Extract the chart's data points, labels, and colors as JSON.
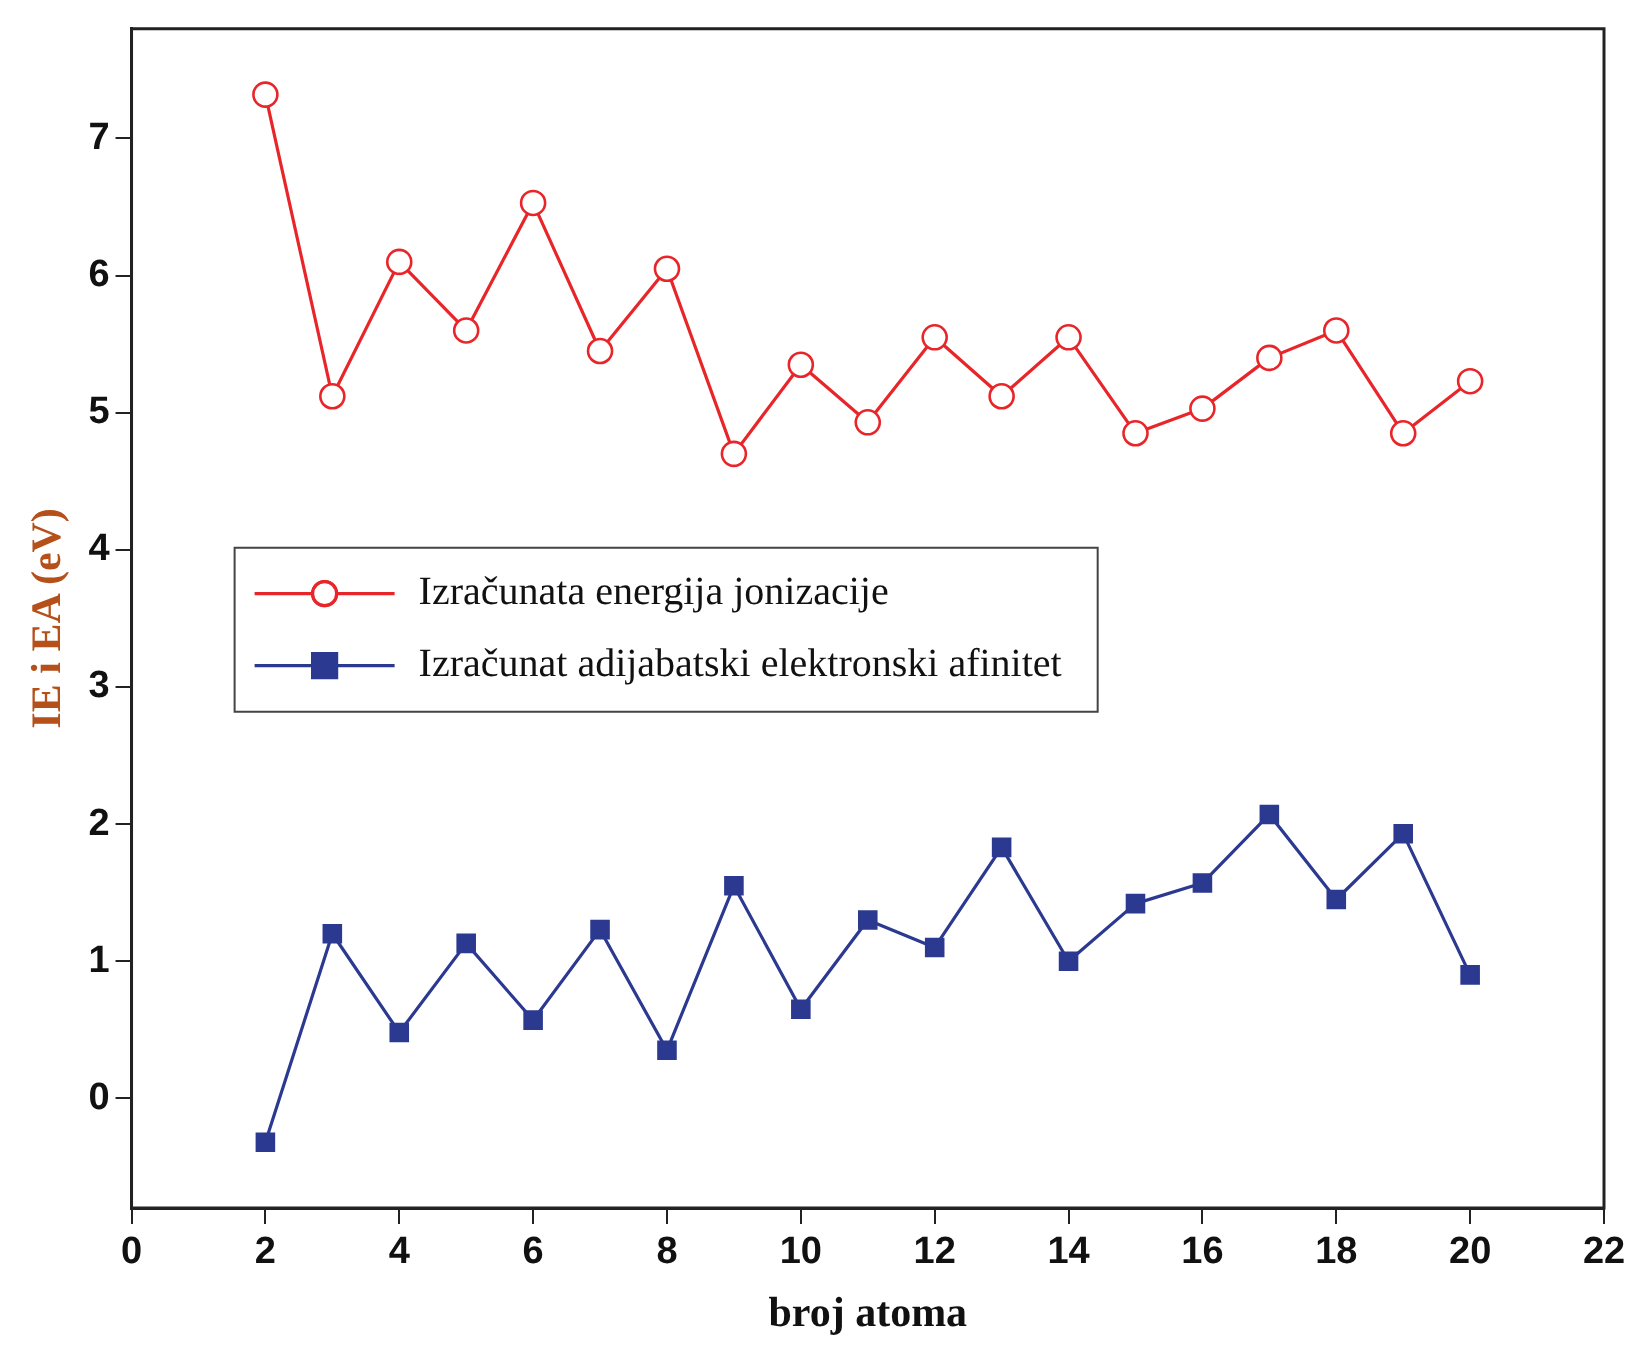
{
  "chart_data": {
    "type": "line",
    "xlabel": "broj atoma",
    "ylabel": "IE i EA (eV)",
    "x": [
      2,
      3,
      4,
      5,
      6,
      7,
      8,
      9,
      10,
      11,
      12,
      13,
      14,
      15,
      16,
      17,
      18,
      19,
      20
    ],
    "series": [
      {
        "name": "Izračunata energija jonizacije",
        "color": "#e8262a",
        "marker": "circle",
        "values": [
          7.32,
          5.12,
          6.1,
          5.6,
          6.53,
          5.45,
          6.05,
          4.7,
          5.35,
          4.93,
          5.55,
          5.12,
          5.55,
          4.85,
          5.03,
          5.4,
          5.6,
          4.85,
          5.23
        ]
      },
      {
        "name": "Izračunat adijabatski elektronski afinitet",
        "color": "#2b3990",
        "marker": "square",
        "values": [
          -0.32,
          1.2,
          0.48,
          1.13,
          0.57,
          1.23,
          0.35,
          1.55,
          0.65,
          1.3,
          1.1,
          1.83,
          1.0,
          1.42,
          1.57,
          2.07,
          1.45,
          1.93,
          0.9
        ]
      }
    ],
    "xlim": [
      0,
      22
    ],
    "xticks": [
      0,
      2,
      4,
      6,
      8,
      10,
      12,
      14,
      16,
      18,
      20,
      22
    ],
    "ylim": [
      -0.8,
      7.8
    ],
    "yticks": [
      0,
      1,
      2,
      3,
      4,
      5,
      6,
      7
    ],
    "grid": false,
    "legend": "left",
    "line_style": "solid"
  }
}
